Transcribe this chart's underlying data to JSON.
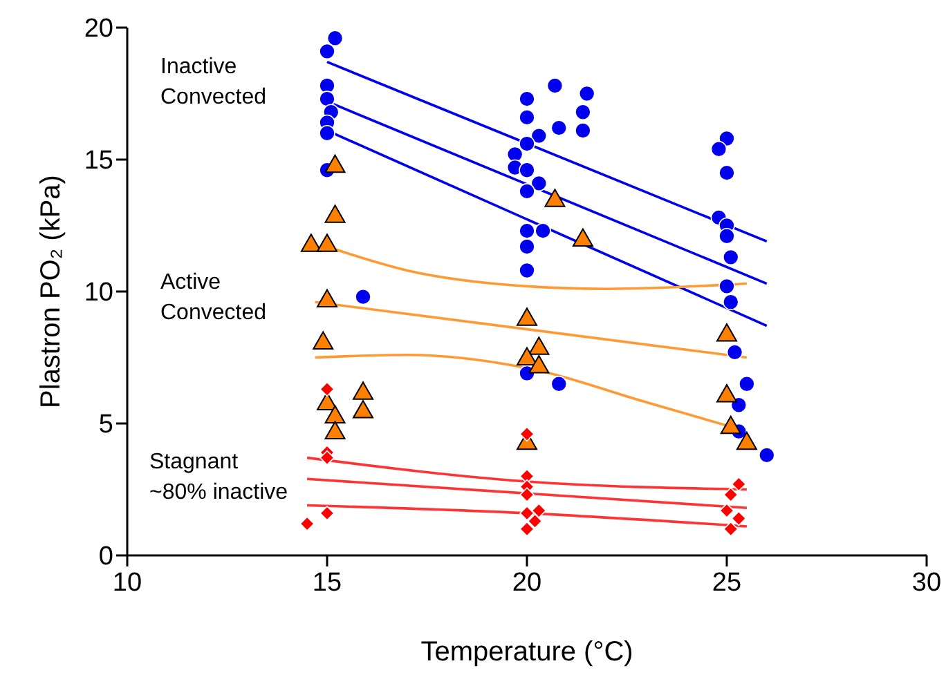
{
  "chart_data": {
    "type": "scatter",
    "xlabel": "Temperature (°C)",
    "ylabel": "Plastron PO₂ (kPa)",
    "xlim": [
      10,
      30
    ],
    "xticks": [
      10,
      15,
      20,
      25,
      30
    ],
    "ylim": [
      0,
      20
    ],
    "yticks": [
      0,
      5,
      10,
      15,
      20
    ],
    "grid": false,
    "legend": false,
    "annotations": [
      "Inactive\nConvected",
      "Active\nConvected",
      "Stagnant\n~80% inactive"
    ],
    "series": [
      {
        "marker": "circle",
        "color": "#0000ee",
        "x": [
          15.2,
          15,
          15,
          15,
          15.1,
          15,
          15,
          15,
          15.9,
          20,
          20.7,
          21.5,
          20,
          20.8,
          21.4,
          21.4,
          20.3,
          20,
          19.7,
          19.7,
          20,
          20.3,
          20,
          20,
          20.4,
          20,
          20,
          20,
          20.8,
          25,
          24.8,
          25,
          24.8,
          25,
          25,
          25.1,
          25,
          25.1,
          25.2,
          25.5,
          25.3,
          25.3,
          26
        ],
        "values": [
          19.6,
          19.1,
          17.8,
          17.3,
          16.8,
          16.4,
          16,
          14.6,
          9.8,
          17.3,
          17.8,
          17.5,
          16.6,
          16.2,
          16.8,
          16.1,
          15.9,
          15.6,
          15.2,
          14.7,
          14.6,
          14.1,
          13.8,
          12.3,
          12.3,
          11.7,
          10.8,
          6.9,
          6.5,
          15.8,
          15.4,
          14.5,
          12.8,
          12.5,
          12.1,
          11.3,
          10.2,
          9.6,
          7.7,
          6.5,
          5.7,
          4.7,
          3.8
        ]
      },
      {
        "marker": "triangle",
        "color": "#ff8000",
        "x": [
          15.2,
          15.2,
          14.6,
          15,
          15,
          14.9,
          15.9,
          15,
          15.2,
          15.9,
          15.2,
          20.7,
          21.4,
          20,
          20.3,
          20,
          20.3,
          20,
          25,
          25,
          25.1,
          25.5
        ],
        "values": [
          14.8,
          12.9,
          11.8,
          11.8,
          9.7,
          8.1,
          6.2,
          5.8,
          5.3,
          5.5,
          4.7,
          13.5,
          12,
          9,
          7.9,
          7.5,
          7.2,
          4.3,
          8.4,
          6.1,
          4.9,
          4.3
        ]
      },
      {
        "marker": "diamond",
        "color": "#ff0000",
        "x": [
          15,
          15,
          15,
          15,
          14.5,
          20,
          20,
          20,
          20,
          20,
          20.3,
          20,
          20.2,
          25.3,
          25.1,
          25,
          25.3,
          25.1
        ],
        "values": [
          6.3,
          3.9,
          3.7,
          1.6,
          1.2,
          4.6,
          3,
          2.6,
          2.3,
          1.6,
          1.7,
          1,
          1.3,
          2.7,
          2.3,
          1.7,
          1.4,
          1
        ]
      },
      {
        "type": "line",
        "marker": "none",
        "color": "#0000ee",
        "x": [
          15,
          26
        ],
        "values": [
          18.7,
          11.9
        ]
      },
      {
        "type": "line",
        "marker": "none",
        "color": "#0000ee",
        "x": [
          15,
          26
        ],
        "values": [
          17.2,
          10.3
        ]
      },
      {
        "type": "line",
        "marker": "none",
        "color": "#0000ee",
        "x": [
          15,
          26
        ],
        "values": [
          16.1,
          8.7
        ]
      },
      {
        "type": "line",
        "marker": "none",
        "color": "#ff9933",
        "x": [
          15,
          17,
          20,
          22,
          25.5
        ],
        "values": [
          11.7,
          10.8,
          10.2,
          10.1,
          10.3
        ]
      },
      {
        "type": "line",
        "marker": "none",
        "color": "#ff9933",
        "x": [
          14.7,
          25.5
        ],
        "values": [
          9.6,
          7.5
        ]
      },
      {
        "type": "line",
        "marker": "none",
        "color": "#ff9933",
        "x": [
          14.7,
          17,
          20,
          23,
          25.5
        ],
        "values": [
          7.5,
          7.6,
          7.1,
          5.8,
          4.7
        ]
      },
      {
        "type": "line",
        "marker": "none",
        "color": "#ff3333",
        "x": [
          14.5,
          20,
          25.5
        ],
        "values": [
          3.7,
          2.8,
          2.5
        ]
      },
      {
        "type": "line",
        "marker": "none",
        "color": "#ff3333",
        "x": [
          14.5,
          25.5
        ],
        "values": [
          2.9,
          1.8
        ]
      },
      {
        "type": "line",
        "marker": "none",
        "color": "#ff3333",
        "x": [
          14.5,
          20,
          25.5
        ],
        "values": [
          1.9,
          1.6,
          1.1
        ]
      }
    ]
  }
}
